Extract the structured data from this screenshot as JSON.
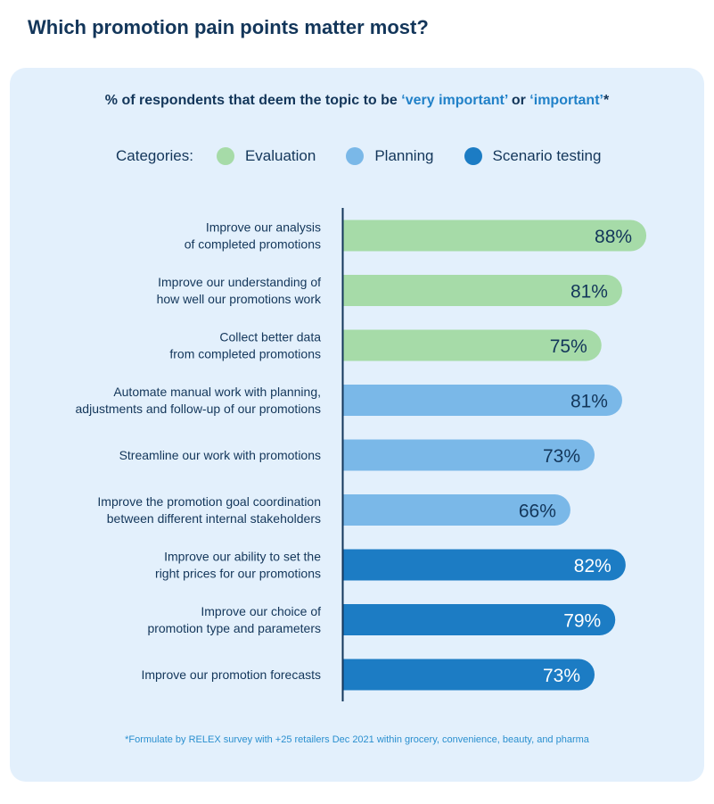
{
  "header": {
    "title": "Which promotion pain points matter most?"
  },
  "card": {
    "subtitle_prefix": "% of respondents that deem the topic to be ",
    "subtitle_hl1": "‘very important’",
    "subtitle_mid": " or ",
    "subtitle_hl2": "‘important’",
    "subtitle_suffix": "*",
    "footnote": "*Formulate by RELEX survey with +25 retailers Dec 2021 within grocery, convenience, beauty, and pharma"
  },
  "legend": {
    "label": "Categories:",
    "items": [
      {
        "name": "Evaluation",
        "color": "#a6dba8"
      },
      {
        "name": "Planning",
        "color": "#7ab8e8"
      },
      {
        "name": "Scenario testing",
        "color": "#1c7cc4"
      }
    ]
  },
  "chart_data": {
    "type": "bar",
    "orientation": "horizontal",
    "value_suffix": "%",
    "xlim": [
      0,
      100
    ],
    "grid": false,
    "legend_position": "top",
    "colors": {
      "Evaluation": "#a6dba8",
      "Planning": "#7ab8e8",
      "Scenario testing": "#1c7cc4"
    },
    "label_colors": {
      "Evaluation": "#13365a",
      "Planning": "#13365a",
      "Scenario testing": "#ffffff"
    },
    "bars": [
      {
        "label_lines": [
          "Improve our analysis",
          "of completed promotions"
        ],
        "value": 88,
        "category": "Evaluation"
      },
      {
        "label_lines": [
          "Improve our understanding of",
          "how well our promotions work"
        ],
        "value": 81,
        "category": "Evaluation"
      },
      {
        "label_lines": [
          "Collect better data",
          "from completed promotions"
        ],
        "value": 75,
        "category": "Evaluation"
      },
      {
        "label_lines": [
          "Automate manual work with planning,",
          "adjustments and follow-up of our promotions"
        ],
        "value": 81,
        "category": "Planning"
      },
      {
        "label_lines": [
          "Streamline our work with promotions"
        ],
        "value": 73,
        "category": "Planning"
      },
      {
        "label_lines": [
          "Improve the promotion goal coordination",
          "between different internal stakeholders"
        ],
        "value": 66,
        "category": "Planning"
      },
      {
        "label_lines": [
          "Improve our ability to set the",
          "right prices for our promotions"
        ],
        "value": 82,
        "category": "Scenario testing"
      },
      {
        "label_lines": [
          "Improve our choice of",
          "promotion type and parameters"
        ],
        "value": 79,
        "category": "Scenario testing"
      },
      {
        "label_lines": [
          "Improve our promotion forecasts"
        ],
        "value": 73,
        "category": "Scenario testing"
      }
    ]
  }
}
